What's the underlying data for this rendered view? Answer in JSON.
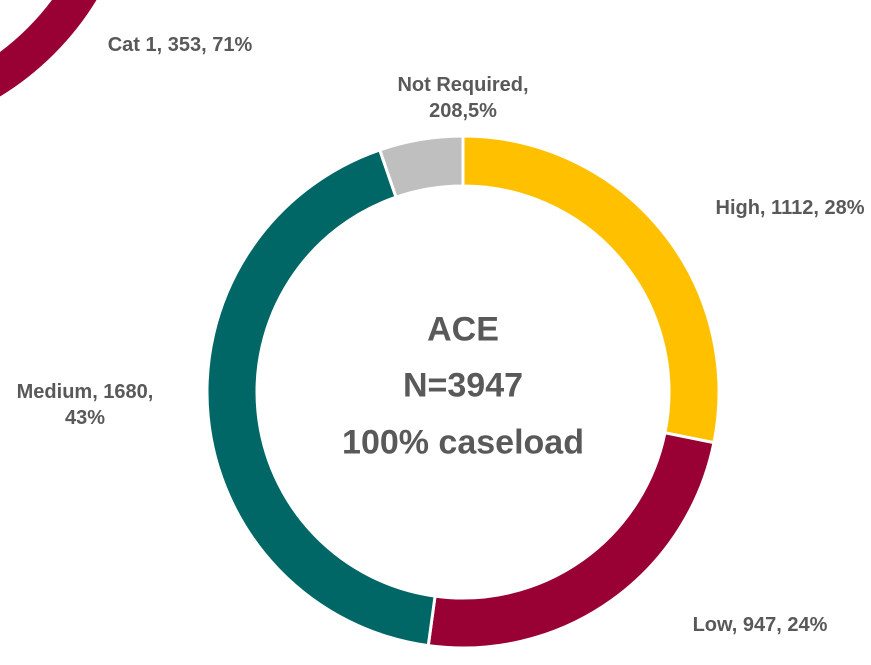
{
  "chart_data": [
    {
      "type": "donut",
      "values": [
        1112,
        947,
        1680,
        208
      ],
      "value_labels": [
        "High, 1112, 28%",
        "Low, 947, 24%",
        "Medium, 1680, 43%",
        "Not Required, 208,5%"
      ],
      "colors": [
        "#FFC000",
        "#990033",
        "#006666",
        "#BFBFBF"
      ],
      "annotations": [
        "ACE",
        "N=3947",
        "100% caseload"
      ]
    },
    {
      "type": "donut-partial",
      "values": [
        353
      ],
      "value_labels": [
        "Cat 1, 353, 71%"
      ],
      "colors": [
        "#990033"
      ]
    }
  ]
}
